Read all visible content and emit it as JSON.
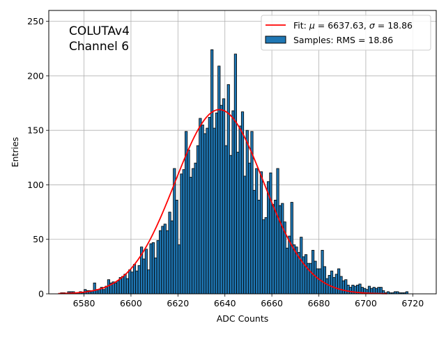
{
  "chart_data": {
    "type": "bar",
    "subtype": "histogram",
    "title": "",
    "annotation_lines": [
      "COLUTAv4",
      "Channel 6"
    ],
    "xlabel": "ADC Counts",
    "ylabel": "Entries",
    "xlim": [
      6565,
      6730
    ],
    "ylim": [
      0,
      260
    ],
    "xticks": [
      6580,
      6600,
      6620,
      6640,
      6660,
      6680,
      6700,
      6720
    ],
    "yticks": [
      0,
      50,
      100,
      150,
      200,
      250
    ],
    "grid": true,
    "legend_position": "top-right",
    "bin_start": 6570,
    "bin_width": 1,
    "counts": [
      1,
      1,
      0,
      2,
      2,
      2,
      1,
      1,
      2,
      1,
      4,
      3,
      3,
      3,
      10,
      4,
      4,
      6,
      4,
      7,
      13,
      10,
      11,
      10,
      12,
      15,
      16,
      18,
      14,
      22,
      20,
      27,
      21,
      26,
      43,
      32,
      41,
      22,
      46,
      47,
      33,
      49,
      58,
      62,
      64,
      58,
      75,
      67,
      115,
      86,
      45,
      110,
      114,
      149,
      132,
      107,
      115,
      120,
      136,
      161,
      155,
      147,
      152,
      162,
      224,
      152,
      166,
      209,
      173,
      179,
      136,
      192,
      127,
      168,
      220,
      130,
      154,
      167,
      108,
      150,
      120,
      149,
      95,
      115,
      86,
      112,
      68,
      70,
      103,
      111,
      82,
      86,
      115,
      81,
      83,
      66,
      42,
      53,
      84,
      45,
      43,
      38,
      52,
      34,
      36,
      28,
      28,
      40,
      30,
      23,
      23,
      40,
      25,
      14,
      17,
      21,
      15,
      18,
      23,
      16,
      12,
      13,
      8,
      6,
      8,
      7,
      8,
      9,
      6,
      5,
      4,
      7,
      5,
      6,
      5,
      6,
      6,
      3,
      1,
      2,
      1,
      1,
      2,
      2,
      1,
      1,
      1,
      2
    ],
    "series": [
      {
        "name": "Fit: μ = 6637.63, σ = 18.86",
        "type": "line",
        "color": "#ff0000",
        "model": "gaussian",
        "mu": 6637.63,
        "sigma": 18.86,
        "peak": 169,
        "x_range": [
          6569,
          6709
        ]
      },
      {
        "name": "Samples: RMS = 18.86",
        "type": "bar",
        "color": "#1f77b4",
        "edgecolor": "#000000"
      }
    ],
    "legend": {
      "fit_prefix": "Fit: ",
      "mu_symbol": "μ",
      "sigma_symbol": "σ",
      "mu_text": " = 6637.63, ",
      "sigma_text": " = 18.86",
      "samples_label": "Samples: RMS = 18.86"
    }
  }
}
